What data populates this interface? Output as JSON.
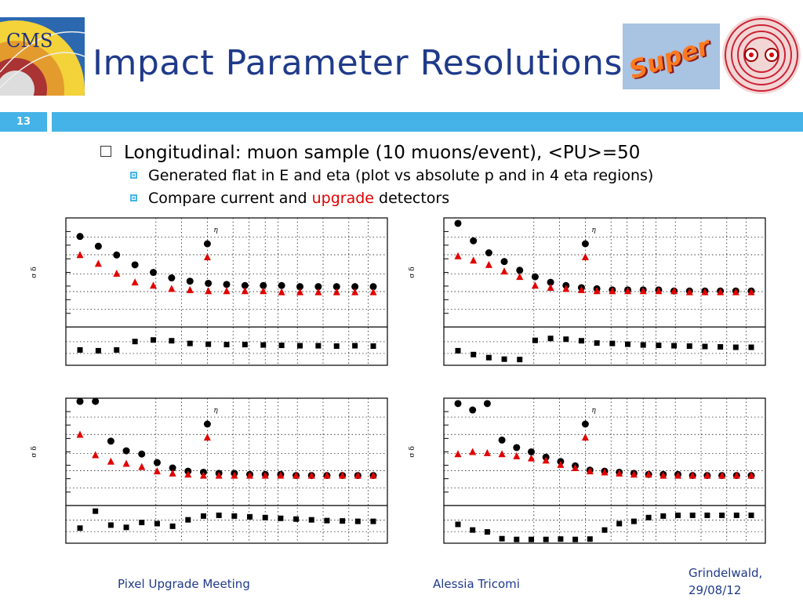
{
  "slide": {
    "title": "Impact Parameter Resolutions",
    "number": "13",
    "accent_color": "#45b3e7",
    "title_color": "#1f3a8a"
  },
  "bullets": {
    "main": "Longitudinal: muon sample (10 muons/event), <PU>=50",
    "sub1": "Generated flat in E and eta (plot vs absolute p and in 4 eta regions)",
    "sub2_prefix": "Compare current and ",
    "sub2_highlight": "upgrade",
    "sub2_suffix": " detectors"
  },
  "logos": {
    "left": "cms-logo",
    "right1_text": "Super",
    "right2": "slhc-logo"
  },
  "footer": {
    "left": "Pixel Upgrade Meeting",
    "center": "Alessia Tricomi",
    "right_line1": "Grindelwald,",
    "right_line2": "29/08/12"
  },
  "chart_data": [
    {
      "type": "scatter",
      "ylabel": "σ δ",
      "legend_title": "η",
      "series": [
        {
          "name": "",
          "marker": "circle",
          "color": "#000000",
          "values": [
            0.83,
            0.74,
            0.66,
            0.57,
            0.5,
            0.45,
            0.42,
            0.4,
            0.39,
            0.38,
            0.38,
            0.38,
            0.37,
            0.37,
            0.37,
            0.37,
            0.37
          ]
        },
        {
          "name": "",
          "marker": "triangle",
          "color": "#e10000",
          "values": [
            0.66,
            0.58,
            0.49,
            0.41,
            0.38,
            0.35,
            0.34,
            0.33,
            0.33,
            0.33,
            0.33,
            0.32,
            0.32,
            0.32,
            0.32,
            0.32,
            0.32
          ]
        }
      ],
      "ratio": [
        0.4,
        0.38,
        0.4,
        0.62,
        0.66,
        0.64,
        0.57,
        0.55,
        0.54,
        0.54,
        0.53,
        0.52,
        0.51,
        0.51,
        0.5,
        0.51,
        0.5
      ]
    },
    {
      "type": "scatter",
      "ylabel": "σ δ",
      "legend_title": "η",
      "series": [
        {
          "name": "",
          "marker": "circle",
          "color": "#000000",
          "values": [
            0.95,
            0.79,
            0.68,
            0.6,
            0.52,
            0.46,
            0.41,
            0.38,
            0.36,
            0.35,
            0.34,
            0.34,
            0.34,
            0.34,
            0.33,
            0.33,
            0.33,
            0.33,
            0.33,
            0.33
          ]
        },
        {
          "name": "",
          "marker": "triangle",
          "color": "#e10000",
          "values": [
            0.65,
            0.61,
            0.57,
            0.51,
            0.46,
            0.38,
            0.36,
            0.35,
            0.34,
            0.33,
            0.33,
            0.33,
            0.33,
            0.33,
            0.33,
            0.32,
            0.32,
            0.32,
            0.32,
            0.32
          ]
        }
      ],
      "ratio": [
        0.38,
        0.28,
        0.2,
        0.16,
        0.15,
        0.65,
        0.7,
        0.68,
        0.64,
        0.58,
        0.57,
        0.55,
        0.53,
        0.52,
        0.51,
        0.5,
        0.49,
        0.48,
        0.47,
        0.47
      ]
    },
    {
      "type": "scatter",
      "ylabel": "σ δ",
      "legend_title": "η",
      "series": [
        {
          "name": "",
          "marker": "circle",
          "color": "#000000",
          "values": [
            0.97,
            0.97,
            0.6,
            0.51,
            0.48,
            0.4,
            0.35,
            0.32,
            0.31,
            0.3,
            0.3,
            0.29,
            0.29,
            0.29,
            0.28,
            0.28,
            0.28,
            0.28,
            0.28,
            0.28
          ]
        },
        {
          "name": "",
          "marker": "triangle",
          "color": "#e10000",
          "values": [
            0.66,
            0.47,
            0.41,
            0.39,
            0.36,
            0.32,
            0.3,
            0.29,
            0.28,
            0.28,
            0.28,
            0.28,
            0.28,
            0.28,
            0.28,
            0.28,
            0.28,
            0.28,
            0.28,
            0.28
          ]
        }
      ],
      "ratio": [
        0.4,
        0.85,
        0.48,
        0.42,
        0.55,
        0.52,
        0.45,
        0.62,
        0.72,
        0.74,
        0.72,
        0.7,
        0.68,
        0.66,
        0.64,
        0.62,
        0.6,
        0.59,
        0.58,
        0.58
      ]
    },
    {
      "type": "scatter",
      "ylabel": "σ δ",
      "legend_title": "η",
      "series": [
        {
          "name": "",
          "marker": "circle",
          "color": "#000000",
          "values": [
            0.95,
            0.89,
            0.95,
            0.61,
            0.54,
            0.5,
            0.45,
            0.41,
            0.37,
            0.33,
            0.32,
            0.31,
            0.3,
            0.29,
            0.29,
            0.29,
            0.28,
            0.28,
            0.28,
            0.28,
            0.28
          ]
        },
        {
          "name": "",
          "marker": "triangle",
          "color": "#e10000",
          "values": [
            0.48,
            0.5,
            0.49,
            0.48,
            0.46,
            0.44,
            0.42,
            0.38,
            0.35,
            0.32,
            0.31,
            0.3,
            0.29,
            0.29,
            0.28,
            0.28,
            0.28,
            0.28,
            0.28,
            0.28,
            0.28
          ]
        }
      ],
      "ratio": [
        0.5,
        0.35,
        0.3,
        0.12,
        0.1,
        0.1,
        0.1,
        0.11,
        0.1,
        0.11,
        0.35,
        0.52,
        0.58,
        0.68,
        0.72,
        0.74,
        0.74,
        0.74,
        0.74,
        0.74,
        0.74
      ]
    }
  ]
}
